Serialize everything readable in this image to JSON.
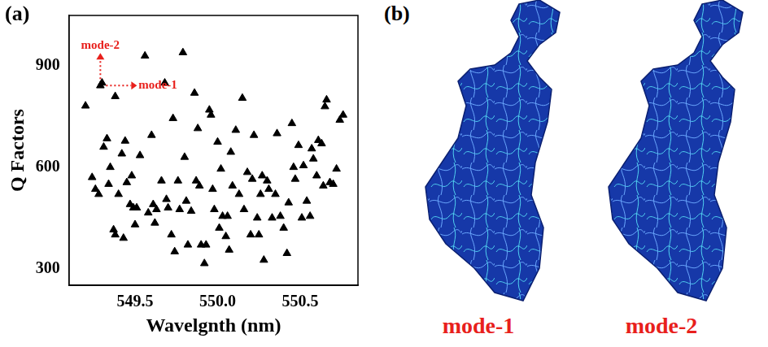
{
  "chart_data": {
    "type": "scatter",
    "x_label": "Wavelgnth (nm)",
    "y_label": "Q Factors",
    "series": [
      {
        "name": "Q",
        "color": "#000000",
        "marker": "triangle",
        "x": [
          549.2,
          549.24,
          549.26,
          549.28,
          549.29,
          549.3,
          549.31,
          549.33,
          549.34,
          549.35,
          549.37,
          549.38,
          549.38,
          549.4,
          549.42,
          549.43,
          549.44,
          549.45,
          549.47,
          549.48,
          549.49,
          549.5,
          549.51,
          549.53,
          549.56,
          549.58,
          549.6,
          549.61,
          549.62,
          549.63,
          549.66,
          549.68,
          549.69,
          549.7,
          549.72,
          549.73,
          549.74,
          549.76,
          549.77,
          549.79,
          549.8,
          549.81,
          549.82,
          549.84,
          549.86,
          549.87,
          549.88,
          549.89,
          549.9,
          549.92,
          549.93,
          549.95,
          549.96,
          549.97,
          549.98,
          550.0,
          550.01,
          550.02,
          550.03,
          550.05,
          550.06,
          550.07,
          550.08,
          550.09,
          550.11,
          550.13,
          550.15,
          550.16,
          550.18,
          550.2,
          550.21,
          550.22,
          550.24,
          550.25,
          550.26,
          550.27,
          550.28,
          550.3,
          550.31,
          550.33,
          550.35,
          550.36,
          550.38,
          550.4,
          550.42,
          550.43,
          550.45,
          550.46,
          550.47,
          550.49,
          550.51,
          550.52,
          550.54,
          550.56,
          550.57,
          550.58,
          550.6,
          550.61,
          550.63,
          550.64,
          550.65,
          550.66,
          550.68,
          550.7,
          550.72,
          550.74,
          550.76
        ],
        "values": [
          782,
          570,
          535,
          520,
          842,
          850,
          660,
          685,
          550,
          600,
          415,
          400,
          810,
          520,
          640,
          390,
          678,
          555,
          490,
          575,
          480,
          430,
          480,
          635,
          930,
          465,
          695,
          490,
          435,
          475,
          560,
          850,
          505,
          480,
          400,
          745,
          350,
          560,
          475,
          940,
          630,
          500,
          370,
          470,
          820,
          560,
          715,
          545,
          370,
          315,
          370,
          770,
          755,
          535,
          475,
          675,
          420,
          595,
          455,
          395,
          455,
          355,
          645,
          545,
          710,
          520,
          805,
          475,
          585,
          400,
          565,
          695,
          450,
          400,
          520,
          575,
          325,
          560,
          535,
          450,
          520,
          700,
          455,
          420,
          345,
          495,
          730,
          600,
          565,
          665,
          450,
          605,
          500,
          455,
          655,
          625,
          575,
          680,
          670,
          545,
          780,
          800,
          555,
          550,
          595,
          740,
          755
        ]
      }
    ],
    "xlim": [
      549.1,
      550.85
    ],
    "xticks": [
      549.5,
      {
        "value": 550.0,
        "label": "550.0"
      },
      550.5
    ],
    "ylim": [
      250,
      1050
    ],
    "yticks": [
      300,
      600,
      900
    ],
    "grid": false,
    "annotations": [
      {
        "text": "mode-1",
        "x": 549.29,
        "y": 842
      },
      {
        "text": "mode-2",
        "x": 549.29,
        "y": 842
      }
    ]
  },
  "figure": {
    "panel_labels": [
      "(a)",
      "(b)"
    ],
    "images": [
      {
        "caption": "mode-1"
      },
      {
        "caption": "mode-2"
      }
    ]
  }
}
